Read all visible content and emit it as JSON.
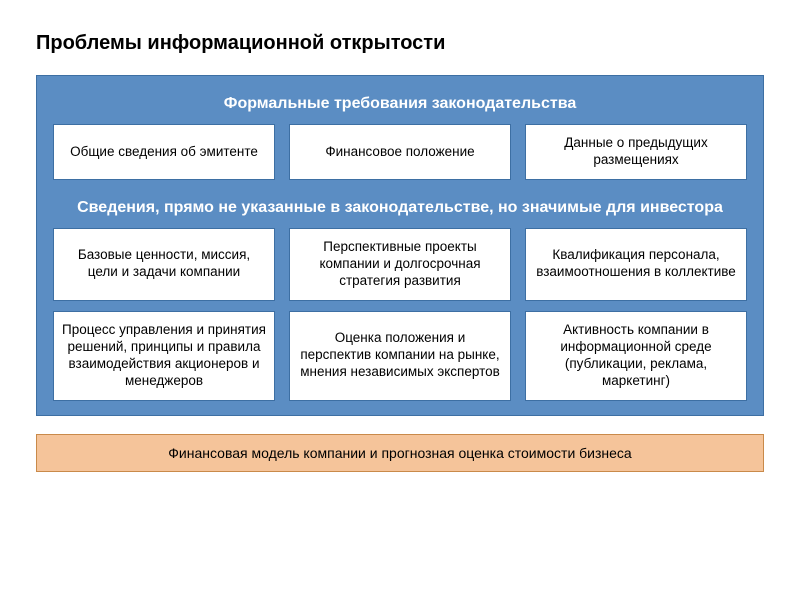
{
  "slide": {
    "title": "Проблемы информационной открытости",
    "colors": {
      "background": "#ffffff",
      "panel_bg": "#5b8dc3",
      "panel_border": "#3d6fa3",
      "cell_bg": "#ffffff",
      "cell_border": "#3d6fa3",
      "header_text": "#ffffff",
      "body_text": "#000000",
      "footer_bg": "#f5c49a",
      "footer_border": "#c98a4a",
      "title_color": "#000000"
    },
    "typography": {
      "title_fontsize": 20,
      "header_fontsize": 16,
      "cell_fontsize": 13.5,
      "footer_fontsize": 14,
      "font_family": "Arial",
      "title_weight": "bold",
      "header_weight": "bold"
    },
    "sections": [
      {
        "header": "Формальные требования законодательства",
        "rows": [
          {
            "cells": [
              "Общие сведения об эмитенте",
              "Финансовое положение",
              "Данные о предыдущих размещениях"
            ]
          }
        ]
      },
      {
        "header": "Сведения, прямо не указанные в законодательстве,\nно значимые для инвестора",
        "rows": [
          {
            "cells": [
              "Базовые ценности, миссия, цели и задачи компании",
              "Перспективные проекты компании и долгосрочная стратегия развития",
              "Квалификация персонала, взаимоотношения в коллективе"
            ]
          },
          {
            "tall": true,
            "cells": [
              "Процесс управления и принятия решений, принципы и правила взаимодействия акционеров и менеджеров",
              "Оценка положения и перспектив компании на рынке, мнения независимых экспертов",
              "Активность компании в информационной среде (публикации, реклама, маркетинг)"
            ]
          }
        ]
      }
    ],
    "footer": "Финансовая модель компании и прогнозная оценка стоимости бизнеса"
  }
}
